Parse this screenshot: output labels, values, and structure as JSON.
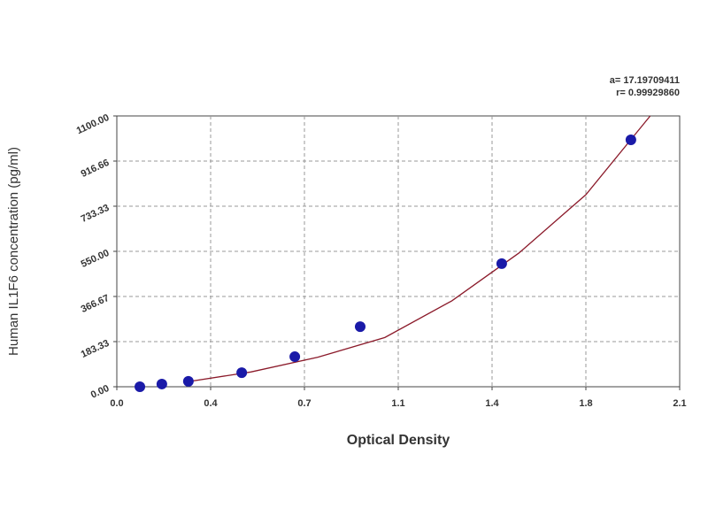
{
  "chart_data": {
    "type": "scatter",
    "annotations": [
      "a= 17.19709411",
      "r= 0.99929860"
    ],
    "x_label": "Optical Density",
    "y_label": "Human IL1F6 concentration (pg/ml)",
    "xlim": [
      0,
      2.1
    ],
    "xticks": [
      {
        "value": 0,
        "label": "0.0"
      },
      {
        "value": 0.35,
        "label": "0.4"
      },
      0.7,
      {
        "value": 1.05,
        "label": "1.1"
      },
      1.4,
      {
        "value": 1.75,
        "label": "1.8"
      },
      2.1
    ],
    "ylim": [
      0,
      1100
    ],
    "yticks": [
      {
        "value": 0,
        "label": "0.00"
      },
      183.33,
      366.67,
      {
        "value": 550,
        "label": "550.00"
      },
      733.33,
      916.66,
      {
        "value": 1100,
        "label": "1100.00"
      }
    ],
    "grid": true,
    "series": [
      {
        "color": "#1a1aa8",
        "x": [
          0.086,
          0.168,
          0.267,
          0.466,
          0.664,
          0.908,
          1.436,
          1.918
        ],
        "values": [
          0,
          11,
          22,
          57,
          122,
          244,
          500,
          1003
        ]
      },
      {
        "color": "#8b1a2a",
        "x": [
          0.25,
          0.5,
          0.75,
          1.0,
          1.25,
          1.5,
          1.75,
          1.99
        ],
        "values": [
          18,
          60,
          120,
          200,
          349,
          543,
          780,
          1100
        ]
      }
    ]
  }
}
